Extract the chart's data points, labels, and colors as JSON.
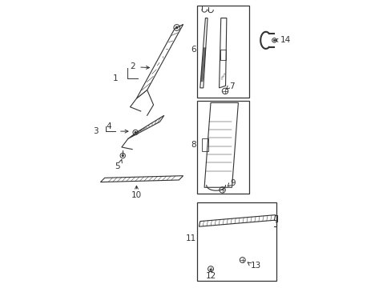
{
  "bg_color": "#ffffff",
  "line_color": "#333333",
  "label_color": "#222222",
  "fig_width": 4.89,
  "fig_height": 3.6,
  "dpi": 100
}
